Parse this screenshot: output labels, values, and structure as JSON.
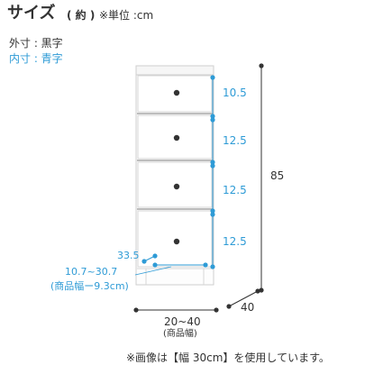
{
  "header": {
    "title": "サイズ",
    "approx": "( 約 )",
    "unit_note": "※単位 :cm",
    "legend_outer": "外寸 : 黒字",
    "legend_inner": "内寸 : 青字"
  },
  "dimensions": {
    "total_height": "85",
    "width": "20~40",
    "width_note": "(商品幅)",
    "depth": "40",
    "inner_width": "10.7~30.7",
    "inner_width_note": "(商品幅ー9.3cm)",
    "inner_depth": "33.5",
    "drawer_heights": [
      "10.5",
      "12.5",
      "12.5",
      "12.5"
    ]
  },
  "footer": {
    "note": "※画像は【幅 30cm】を使用しています。"
  },
  "colors": {
    "inner": "#2e9bd6",
    "outer": "#333333"
  }
}
